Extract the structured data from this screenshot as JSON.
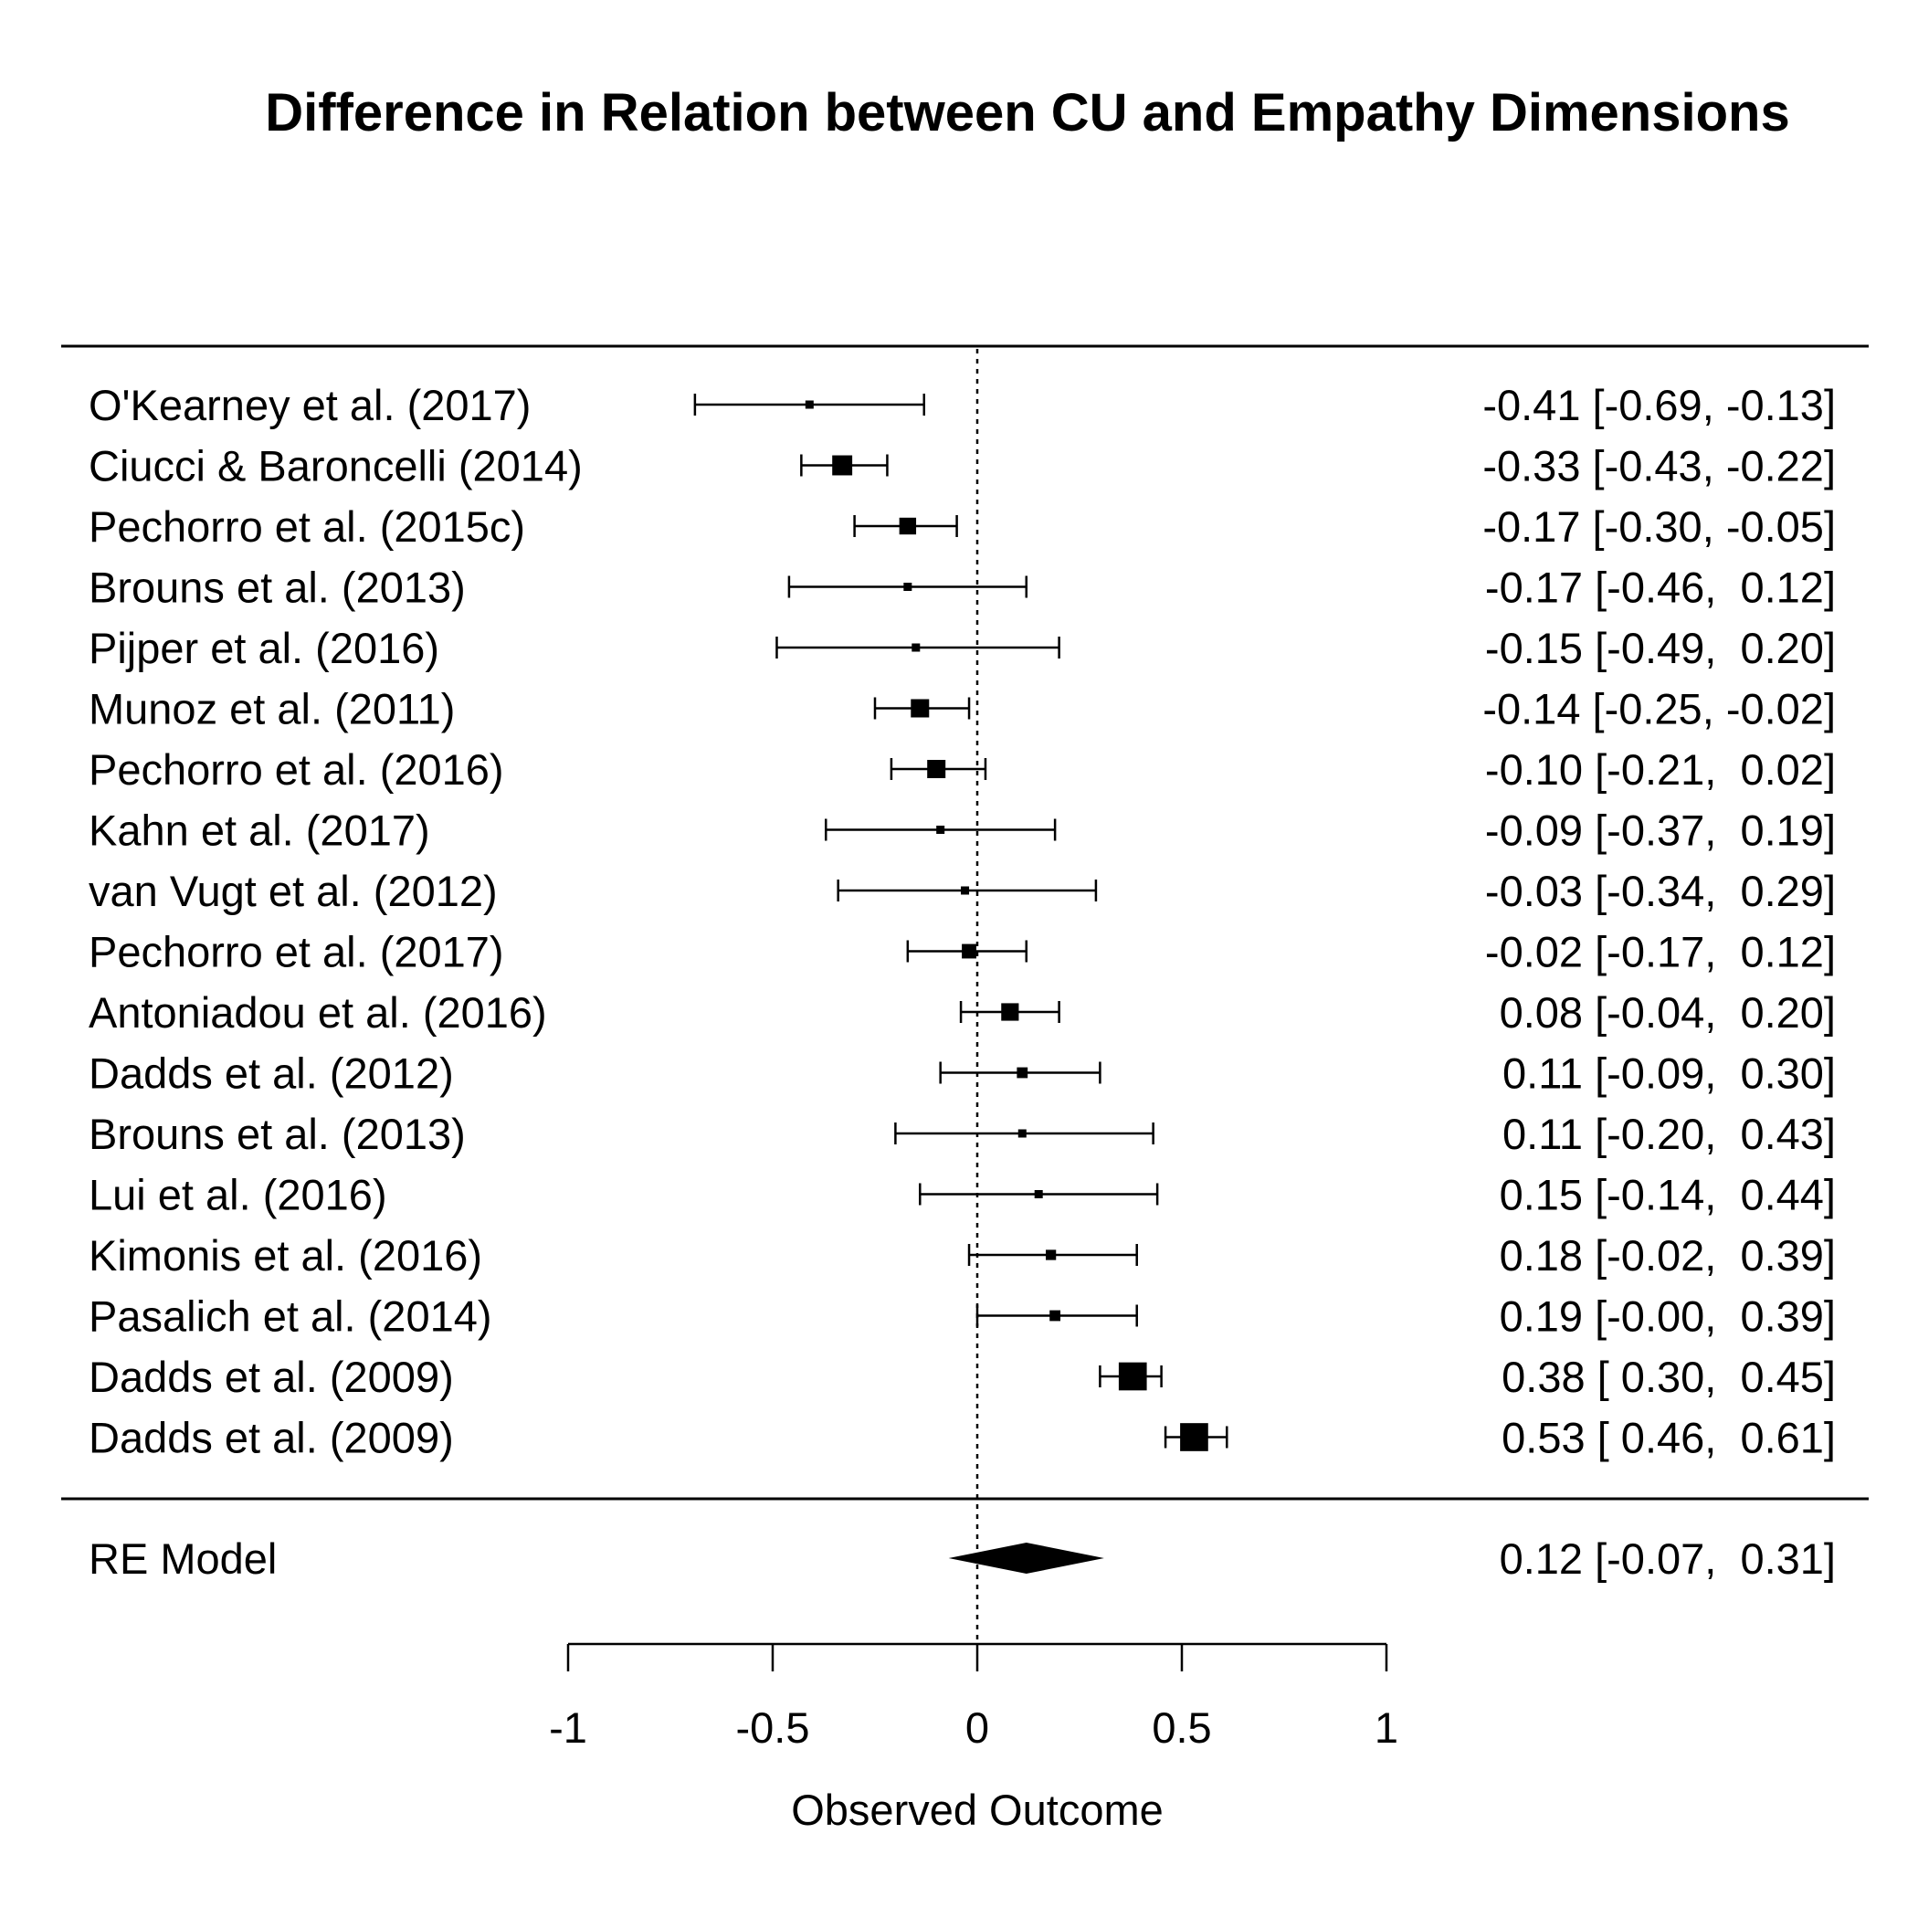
{
  "chart_data": {
    "type": "forest",
    "title": "Difference in Relation between CU and Empathy Dimensions",
    "xlabel": "Observed Outcome",
    "xlim": [
      -1,
      1
    ],
    "xticks": [
      -1,
      -0.5,
      0,
      0.5,
      1
    ],
    "tick_labels": [
      "-1",
      "-0.5",
      "0",
      "0.5",
      "1"
    ],
    "reference_line": 0,
    "studies": [
      {
        "label": "O'Kearney et al. (2017)",
        "estimate": -0.41,
        "lower": -0.69,
        "upper": -0.13,
        "ci_text": "-0.41 [-0.69, -0.13]"
      },
      {
        "label": "Ciucci & Baroncelli (2014)",
        "estimate": -0.33,
        "lower": -0.43,
        "upper": -0.22,
        "ci_text": "-0.33 [-0.43, -0.22]"
      },
      {
        "label": "Pechorro et al. (2015c)",
        "estimate": -0.17,
        "lower": -0.3,
        "upper": -0.05,
        "ci_text": "-0.17 [-0.30, -0.05]"
      },
      {
        "label": "Brouns et al. (2013)",
        "estimate": -0.17,
        "lower": -0.46,
        "upper": 0.12,
        "ci_text": "-0.17 [-0.46,  0.12]"
      },
      {
        "label": "Pijper et al. (2016)",
        "estimate": -0.15,
        "lower": -0.49,
        "upper": 0.2,
        "ci_text": "-0.15 [-0.49,  0.20]"
      },
      {
        "label": "Munoz et al. (2011)",
        "estimate": -0.14,
        "lower": -0.25,
        "upper": -0.02,
        "ci_text": "-0.14 [-0.25, -0.02]"
      },
      {
        "label": "Pechorro et al. (2016)",
        "estimate": -0.1,
        "lower": -0.21,
        "upper": 0.02,
        "ci_text": "-0.10 [-0.21,  0.02]"
      },
      {
        "label": "Kahn et al. (2017)",
        "estimate": -0.09,
        "lower": -0.37,
        "upper": 0.19,
        "ci_text": "-0.09 [-0.37,  0.19]"
      },
      {
        "label": "van Vugt et al. (2012)",
        "estimate": -0.03,
        "lower": -0.34,
        "upper": 0.29,
        "ci_text": "-0.03 [-0.34,  0.29]"
      },
      {
        "label": "Pechorro et al. (2017)",
        "estimate": -0.02,
        "lower": -0.17,
        "upper": 0.12,
        "ci_text": "-0.02 [-0.17,  0.12]"
      },
      {
        "label": "Antoniadou et al. (2016)",
        "estimate": 0.08,
        "lower": -0.04,
        "upper": 0.2,
        "ci_text": "0.08 [-0.04,  0.20]"
      },
      {
        "label": "Dadds et al. (2012)",
        "estimate": 0.11,
        "lower": -0.09,
        "upper": 0.3,
        "ci_text": "0.11 [-0.09,  0.30]"
      },
      {
        "label": "Brouns et al. (2013)",
        "estimate": 0.11,
        "lower": -0.2,
        "upper": 0.43,
        "ci_text": "0.11 [-0.20,  0.43]"
      },
      {
        "label": "Lui et al. (2016)",
        "estimate": 0.15,
        "lower": -0.14,
        "upper": 0.44,
        "ci_text": "0.15 [-0.14,  0.44]"
      },
      {
        "label": "Kimonis et al. (2016)",
        "estimate": 0.18,
        "lower": -0.02,
        "upper": 0.39,
        "ci_text": "0.18 [-0.02,  0.39]"
      },
      {
        "label": "Pasalich et al. (2014)",
        "estimate": 0.19,
        "lower": -0.0,
        "upper": 0.39,
        "ci_text": "0.19 [-0.00,  0.39]"
      },
      {
        "label": "Dadds et al. (2009)",
        "estimate": 0.38,
        "lower": 0.3,
        "upper": 0.45,
        "ci_text": "0.38 [ 0.30,  0.45]"
      },
      {
        "label": "Dadds et al. (2009)",
        "estimate": 0.53,
        "lower": 0.46,
        "upper": 0.61,
        "ci_text": "0.53 [ 0.46,  0.61]"
      }
    ],
    "summary": {
      "label": "RE Model",
      "estimate": 0.12,
      "lower": -0.07,
      "upper": 0.31,
      "ci_text": "0.12 [-0.07,  0.31]"
    }
  }
}
